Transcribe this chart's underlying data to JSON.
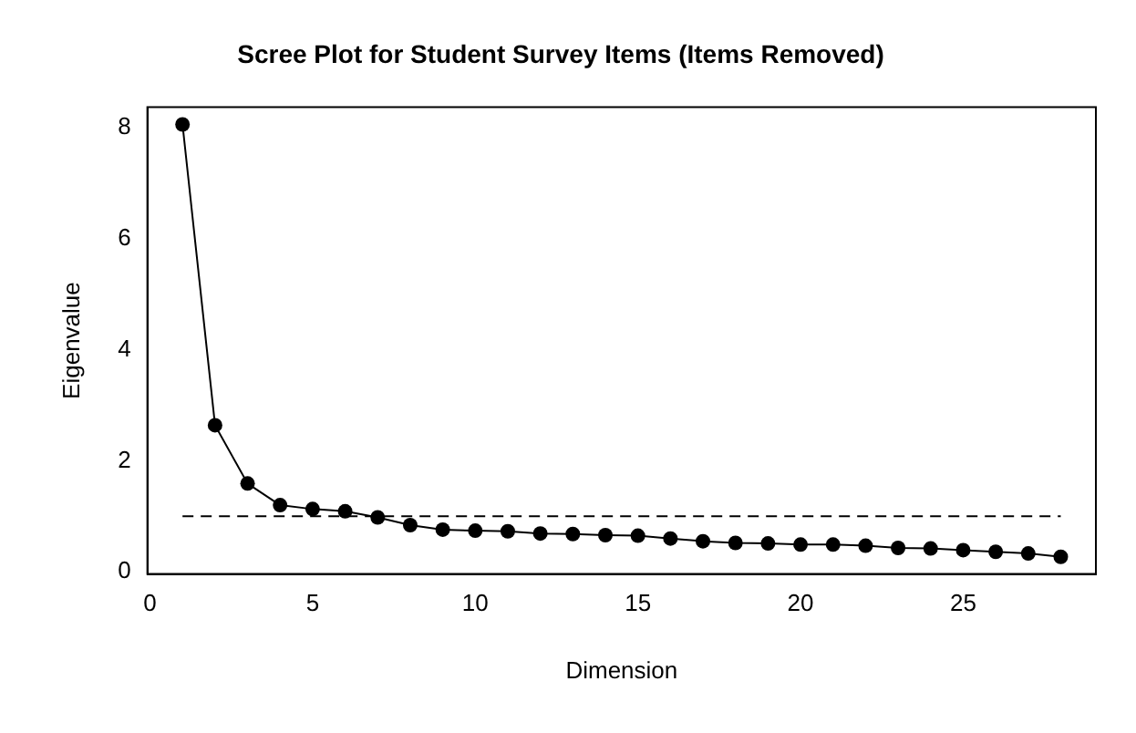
{
  "chart_data": {
    "type": "line",
    "title": "Scree Plot for Student Survey Items (Items Removed)",
    "xlabel": "Dimension",
    "ylabel": "Eigenvalue",
    "x": [
      1,
      2,
      3,
      4,
      5,
      6,
      7,
      8,
      9,
      10,
      11,
      12,
      13,
      14,
      15,
      16,
      17,
      18,
      19,
      20,
      21,
      22,
      23,
      24,
      25,
      26,
      27,
      28
    ],
    "series": [
      {
        "color": "#000000",
        "values": [
          8.06,
          2.64,
          1.59,
          1.2,
          1.13,
          1.09,
          0.98,
          0.84,
          0.76,
          0.74,
          0.73,
          0.69,
          0.68,
          0.66,
          0.65,
          0.6,
          0.55,
          0.52,
          0.51,
          0.49,
          0.49,
          0.47,
          0.43,
          0.42,
          0.39,
          0.36,
          0.33,
          0.27
        ]
      }
    ],
    "xlim": [
      -0.08,
      29.08
    ],
    "xticks": [
      0,
      5,
      10,
      15,
      20,
      25
    ],
    "ylim": [
      -0.04,
      8.37
    ],
    "yticks": [
      0,
      2,
      4,
      6,
      8
    ],
    "ref_lines": [
      {
        "axis": "y",
        "value": 1,
        "color": "#000000",
        "line_style": "dashed"
      }
    ],
    "marker": "circle",
    "line_style": "solid",
    "grid": false,
    "legend": false
  }
}
